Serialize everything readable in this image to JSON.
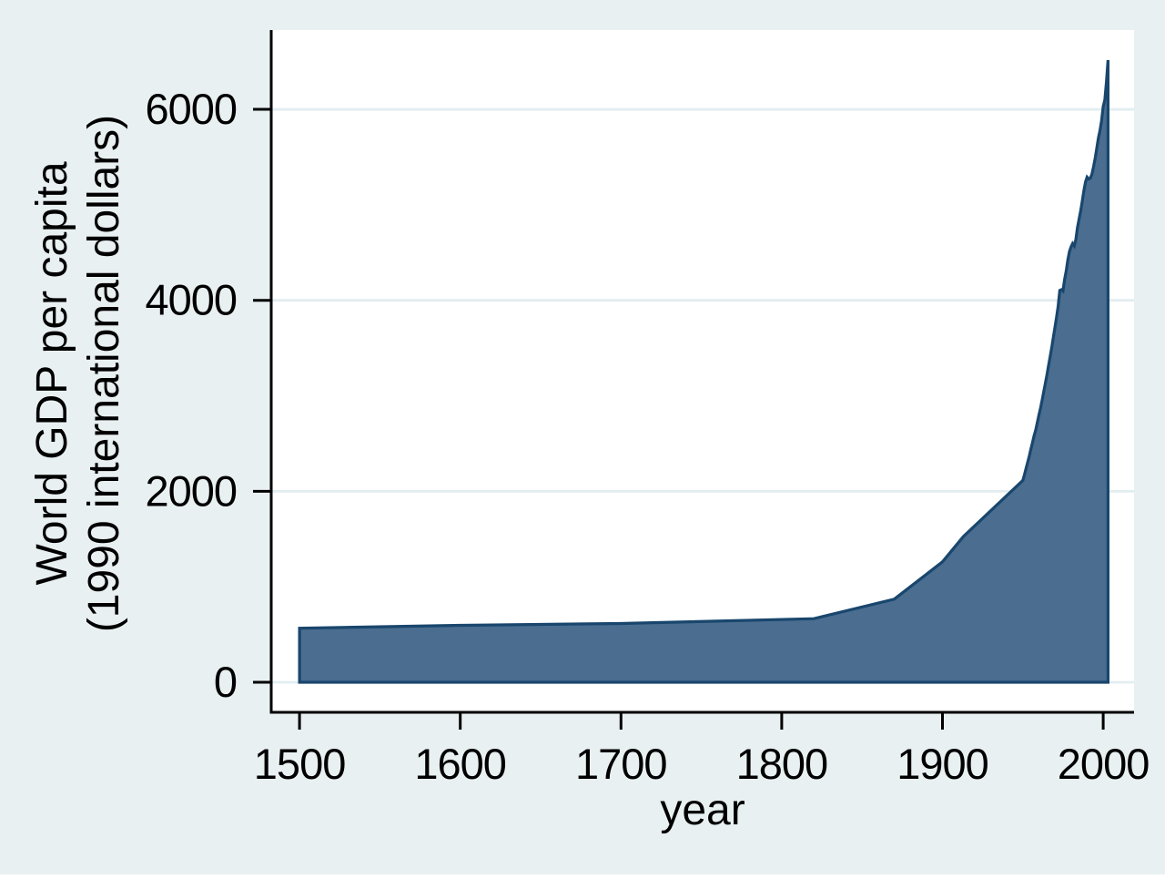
{
  "chart_data": {
    "type": "area",
    "title": "",
    "xlabel": "year",
    "ylabel": "World GDP per capita (1990 international dollars)",
    "ylabel_lines": [
      "World GDP per capita",
      "(1990 international dollars)"
    ],
    "x_ticks": [
      1500,
      1600,
      1700,
      1800,
      1900,
      2000
    ],
    "y_ticks": [
      0,
      2000,
      4000,
      6000
    ],
    "xlim": [
      1482.4,
      2019.2
    ],
    "ylim": [
      -314.8,
      6830.4
    ],
    "grid": "horizontal-on",
    "legend": "none",
    "series": [
      {
        "name": "World GDP per capita (1990 international dollars)",
        "points": [
          [
            1500,
            566
          ],
          [
            1600,
            596
          ],
          [
            1700,
            615
          ],
          [
            1820,
            666
          ],
          [
            1870,
            870
          ],
          [
            1900,
            1261
          ],
          [
            1913,
            1525
          ],
          [
            1950,
            2114
          ],
          [
            1951,
            2175
          ],
          [
            1952,
            2238
          ],
          [
            1953,
            2303
          ],
          [
            1954,
            2370
          ],
          [
            1955,
            2439
          ],
          [
            1956,
            2510
          ],
          [
            1957,
            2583
          ],
          [
            1958,
            2640
          ],
          [
            1959,
            2720
          ],
          [
            1960,
            2800
          ],
          [
            1961,
            2870
          ],
          [
            1962,
            2954
          ],
          [
            1963,
            3040
          ],
          [
            1964,
            3129
          ],
          [
            1965,
            3220
          ],
          [
            1966,
            3314
          ],
          [
            1967,
            3410
          ],
          [
            1968,
            3510
          ],
          [
            1969,
            3612
          ],
          [
            1970,
            3718
          ],
          [
            1971,
            3826
          ],
          [
            1972,
            3938
          ],
          [
            1973,
            4104
          ],
          [
            1974,
            4112
          ],
          [
            1975,
            4098
          ],
          [
            1976,
            4220
          ],
          [
            1977,
            4310
          ],
          [
            1978,
            4420
          ],
          [
            1979,
            4510
          ],
          [
            1980,
            4560
          ],
          [
            1981,
            4595
          ],
          [
            1982,
            4570
          ],
          [
            1983,
            4640
          ],
          [
            1984,
            4760
          ],
          [
            1985,
            4850
          ],
          [
            1986,
            4940
          ],
          [
            1987,
            5040
          ],
          [
            1988,
            5150
          ],
          [
            1989,
            5240
          ],
          [
            1990,
            5290
          ],
          [
            1991,
            5270
          ],
          [
            1992,
            5280
          ],
          [
            1993,
            5320
          ],
          [
            1994,
            5400
          ],
          [
            1995,
            5490
          ],
          [
            1996,
            5590
          ],
          [
            1997,
            5700
          ],
          [
            1998,
            5780
          ],
          [
            1999,
            5880
          ],
          [
            2000,
            6030
          ],
          [
            2001,
            6100
          ],
          [
            2002,
            6280
          ],
          [
            2003,
            6516
          ]
        ]
      }
    ]
  },
  "style": {
    "background_color": "#e9f0f2",
    "plot_background_color": "#ffffff",
    "grid_color": "#e2edf0",
    "axis_color": "#000000",
    "text_color": "#000000",
    "area_fill_color": "#4a6d90",
    "area_line_color": "#19466d"
  }
}
